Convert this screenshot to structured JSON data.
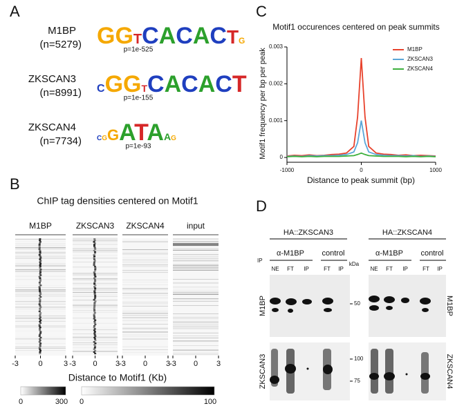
{
  "panel_labels": [
    "A",
    "B",
    "C",
    "D"
  ],
  "panel_a": {
    "motifs": [
      {
        "name": "M1BP",
        "count": "(n=5279)",
        "logo": "GGTCACACTG",
        "p_value": "p=1e-525"
      },
      {
        "name": "ZKSCAN3",
        "count": "(n=8991)",
        "logo": "CGGTCACACT",
        "p_value": "p=1e-155"
      },
      {
        "name": "ZKSCAN4",
        "count": "(n=7734)",
        "logo": "CGGATAAG",
        "p_value": "p=1e-93"
      }
    ]
  },
  "panel_b": {
    "title": "ChIP tag densities centered on Motif1",
    "columns": [
      "M1BP",
      "ZKSCAN3",
      "ZKSCAN4",
      "input"
    ],
    "xticks": [
      -3,
      0,
      3
    ],
    "xlabel": "Distance to Motif1 (Kb)",
    "colorbars": [
      {
        "min": 0,
        "max": 300
      },
      {
        "min": 0,
        "max": 100
      }
    ]
  },
  "chart_data": {
    "type": "line",
    "title": "Motif1 occurences centered on peak summits",
    "xlabel": "Distance to peak summit (bp)",
    "ylabel": "Motif1 frequency per bp per peak",
    "x": [
      -1000,
      -900,
      -800,
      -700,
      -600,
      -500,
      -400,
      -300,
      -200,
      -100,
      -50,
      0,
      50,
      100,
      200,
      300,
      400,
      500,
      600,
      700,
      800,
      900,
      1000
    ],
    "series": [
      {
        "name": "M1BP",
        "color": "#e8412b",
        "values": [
          4e-05,
          6e-05,
          5e-05,
          7e-05,
          5e-05,
          6e-05,
          8e-05,
          9e-05,
          0.00012,
          0.0003,
          0.0011,
          0.0027,
          0.0011,
          0.0003,
          0.00012,
          9e-05,
          8e-05,
          6e-05,
          7e-05,
          5e-05,
          6e-05,
          5e-05,
          4e-05
        ]
      },
      {
        "name": "ZKSCAN3",
        "color": "#5aa6d8",
        "values": [
          3e-05,
          4e-05,
          3e-05,
          5e-05,
          4e-05,
          5e-05,
          5e-05,
          6e-05,
          8e-05,
          0.00015,
          0.0004,
          0.001,
          0.0004,
          0.00015,
          8e-05,
          6e-05,
          5e-05,
          5e-05,
          4e-05,
          5e-05,
          3e-05,
          4e-05,
          3e-05
        ]
      },
      {
        "name": "ZKSCAN4",
        "color": "#3cb03c",
        "values": [
          2e-05,
          3e-05,
          2e-05,
          3e-05,
          2e-05,
          3e-05,
          3e-05,
          3e-05,
          4e-05,
          5e-05,
          8e-05,
          0.00012,
          8e-05,
          5e-05,
          4e-05,
          3e-05,
          3e-05,
          3e-05,
          2e-05,
          3e-05,
          2e-05,
          3e-05,
          2e-05
        ]
      }
    ],
    "xlim": [
      -1000,
      1000
    ],
    "xticks": [
      -1000,
      0,
      1000
    ],
    "ylim": [
      -0.00013,
      0.003
    ],
    "yticks": [
      0,
      0.001,
      0.002,
      0.003
    ],
    "legend": "upper right"
  },
  "panel_d": {
    "ip": "IP",
    "groups": [
      {
        "title": "HA::ZKSCAN3",
        "ip_label": "α-M1BP",
        "control_label": "control",
        "lanes": [
          "NE",
          "FT",
          "IP",
          "FT",
          "IP"
        ]
      },
      {
        "title": "HA::ZKSCAN4",
        "ip_label": "α-M1BP",
        "control_label": "control",
        "lanes": [
          "NE",
          "FT",
          "IP",
          "FT",
          "IP"
        ]
      }
    ],
    "kda": "kDa",
    "markers": [
      50,
      100,
      75
    ],
    "blots": [
      {
        "left": "M1BP",
        "right": "M1BP"
      },
      {
        "left": "ZKSCAN3",
        "right": "ZKSCAN4"
      }
    ]
  }
}
